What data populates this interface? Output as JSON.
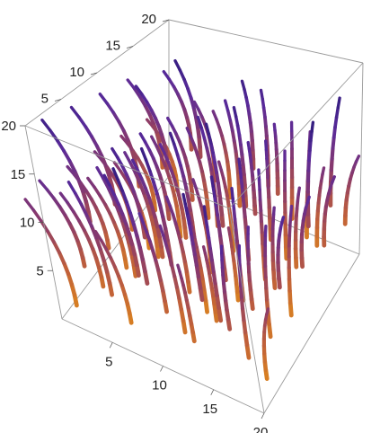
{
  "chart_data": {
    "type": "3d-streamtube",
    "title": "",
    "xlabel": "",
    "ylabel": "",
    "zlabel": "",
    "xlim": [
      0,
      20
    ],
    "ylim": [
      0,
      20
    ],
    "zlim": [
      0,
      20
    ],
    "x_ticks": [
      "5",
      "10",
      "15",
      "20"
    ],
    "y_ticks": [
      "5",
      "10",
      "15",
      "20"
    ],
    "z_ticks": [
      "5",
      "10",
      "15",
      "20"
    ],
    "grid": false,
    "colormap": [
      "#2b1a7a",
      "#5a2a9a",
      "#8a3a6a",
      "#c0603a",
      "#e08a1a"
    ],
    "tubes": [
      {
        "x": 2,
        "y": 2
      },
      {
        "x": 2,
        "y": 6
      },
      {
        "x": 2,
        "y": 10
      },
      {
        "x": 2,
        "y": 14
      },
      {
        "x": 2,
        "y": 18
      },
      {
        "x": 6,
        "y": 2
      },
      {
        "x": 6,
        "y": 6
      },
      {
        "x": 6,
        "y": 10
      },
      {
        "x": 6,
        "y": 14
      },
      {
        "x": 6,
        "y": 18
      },
      {
        "x": 10,
        "y": 2
      },
      {
        "x": 10,
        "y": 6
      },
      {
        "x": 10,
        "y": 10
      },
      {
        "x": 10,
        "y": 14
      },
      {
        "x": 10,
        "y": 18
      },
      {
        "x": 14,
        "y": 2
      },
      {
        "x": 14,
        "y": 6
      },
      {
        "x": 14,
        "y": 10
      },
      {
        "x": 14,
        "y": 14
      },
      {
        "x": 14,
        "y": 18
      },
      {
        "x": 18,
        "y": 2
      },
      {
        "x": 18,
        "y": 6
      },
      {
        "x": 18,
        "y": 10
      },
      {
        "x": 18,
        "y": 14
      },
      {
        "x": 18,
        "y": 18
      }
    ]
  }
}
